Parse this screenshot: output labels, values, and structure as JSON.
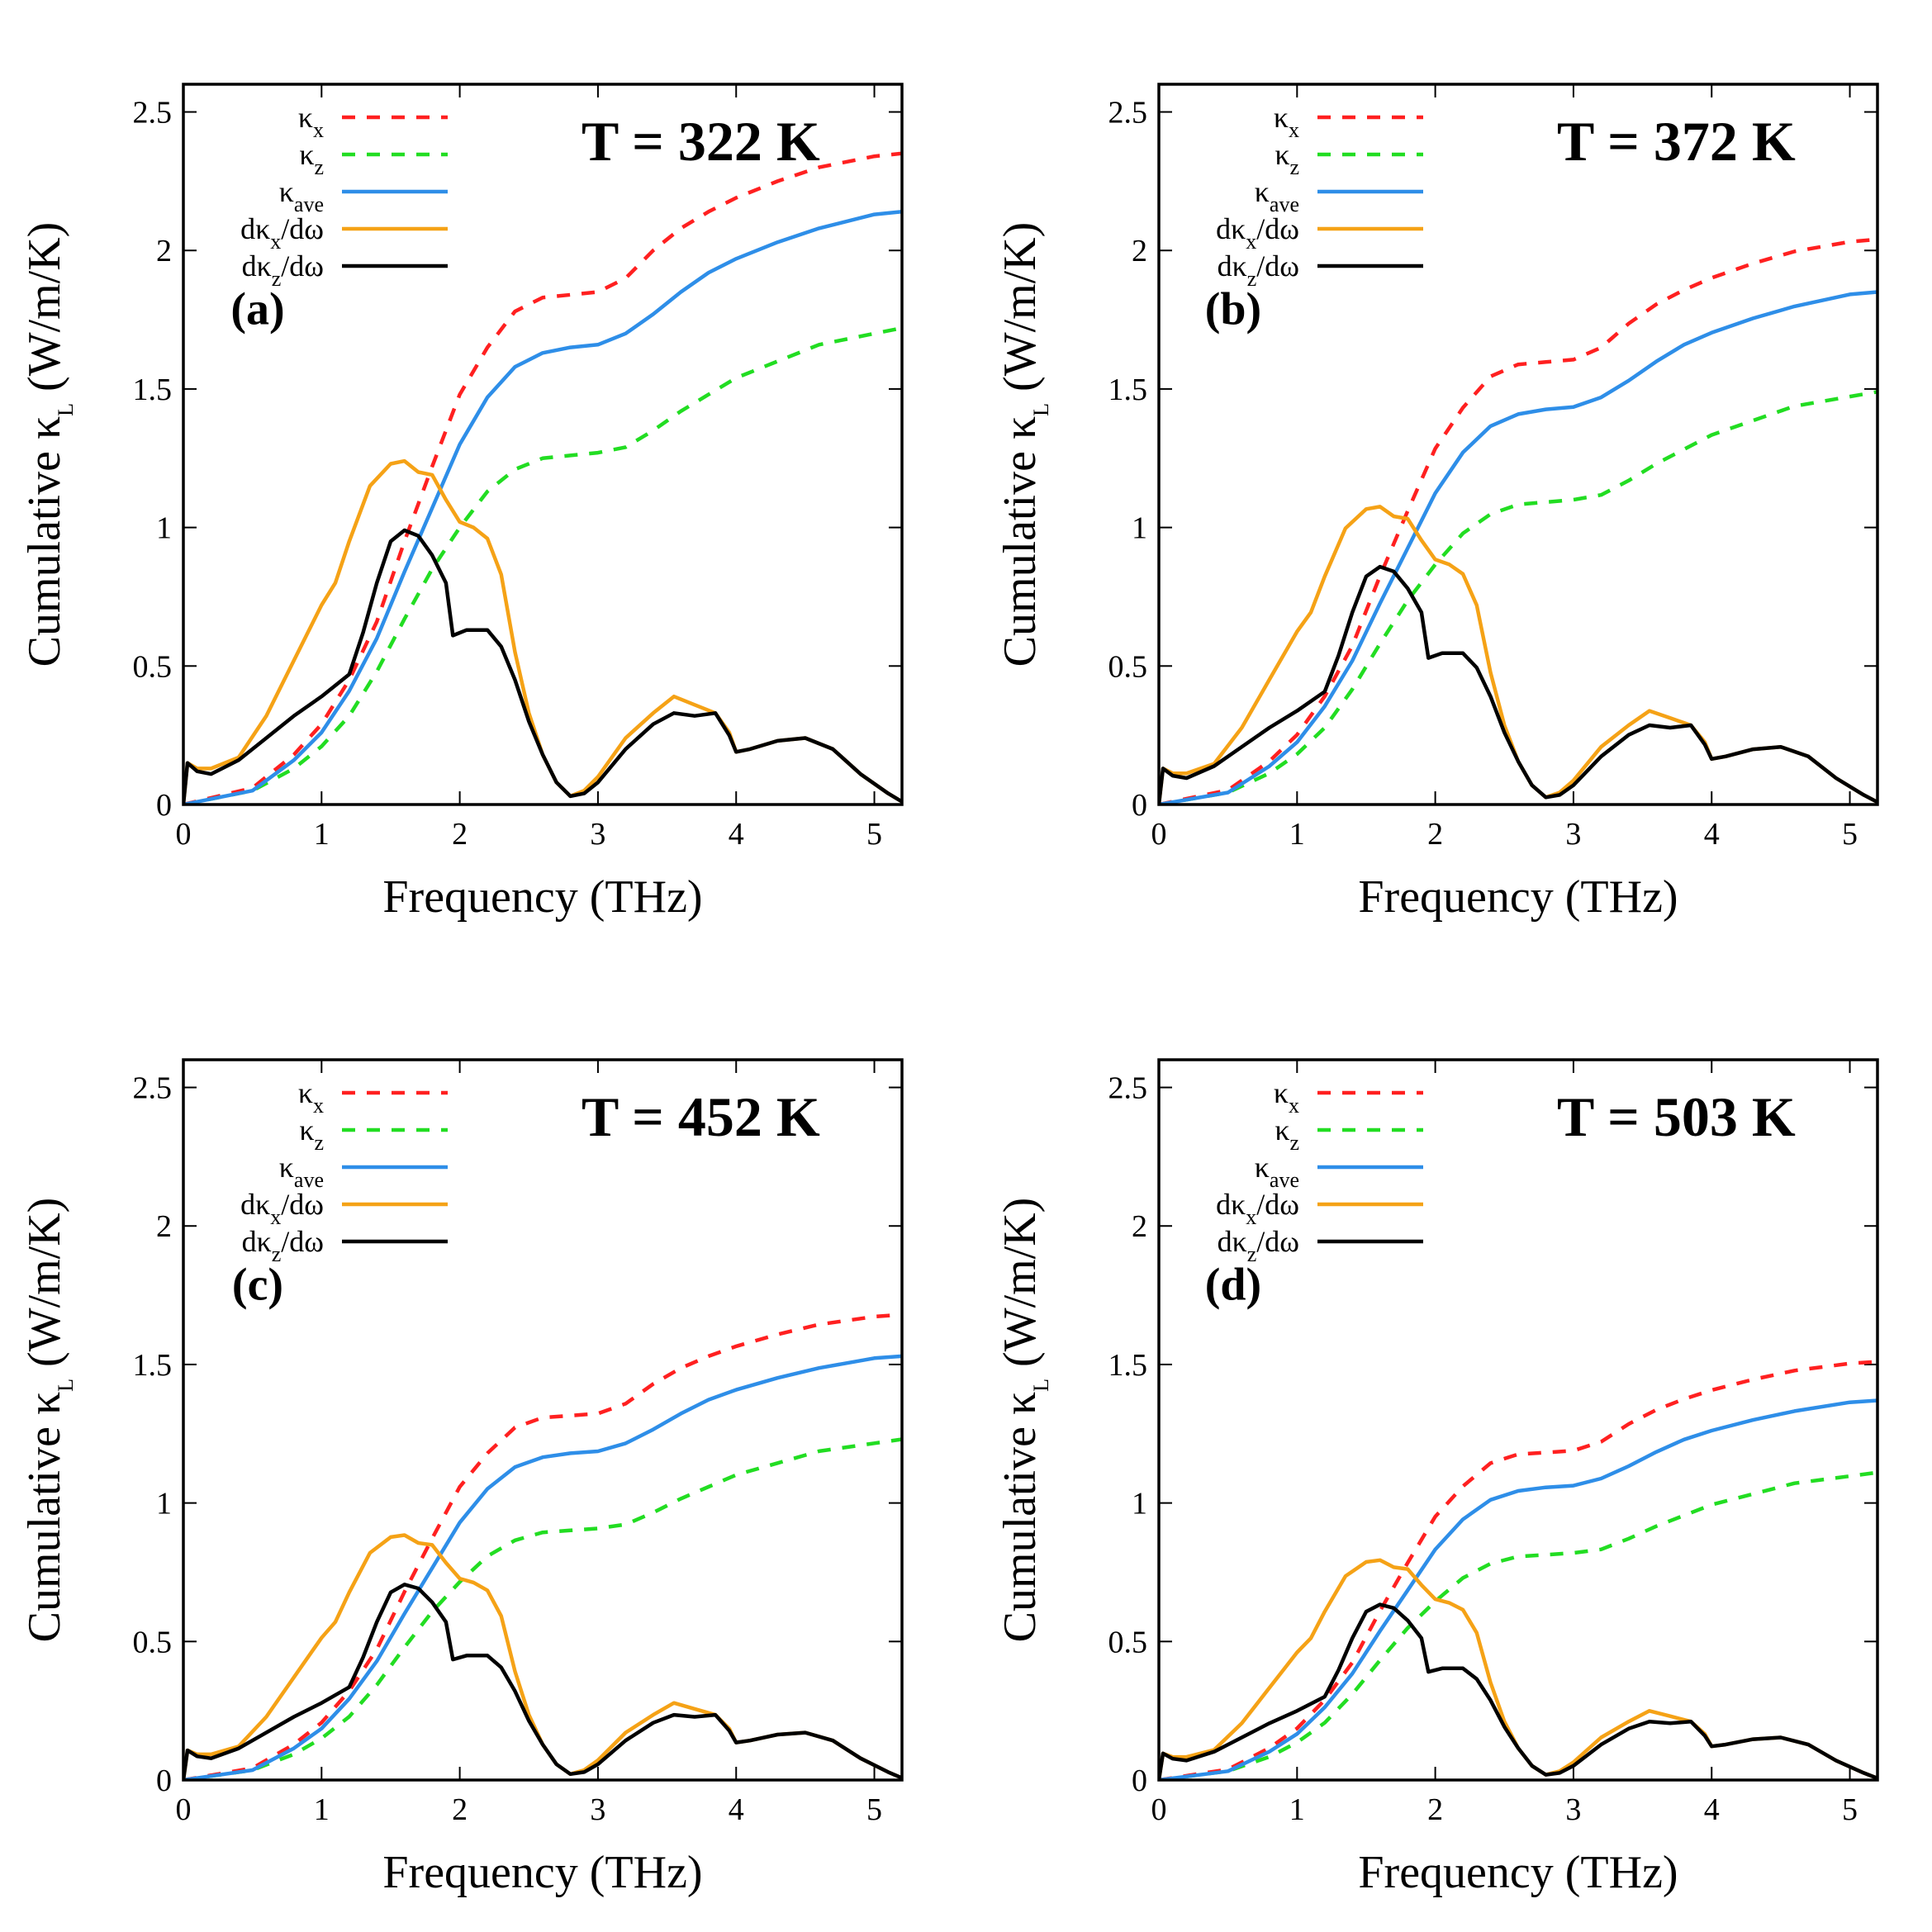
{
  "legend": [
    {
      "key": "kx",
      "label": "κ",
      "sub": "x",
      "suffix": "",
      "color": "#ff2020",
      "dash": true
    },
    {
      "key": "kz",
      "label": "κ",
      "sub": "z",
      "suffix": "",
      "color": "#22dd22",
      "dash": true
    },
    {
      "key": "kave",
      "label": "κ",
      "sub": "ave",
      "suffix": "",
      "color": "#2e8ee8",
      "dash": false
    },
    {
      "key": "dkx",
      "label": "dκ",
      "sub": "x",
      "suffix": "/dω",
      "color": "#f5a216",
      "dash": false
    },
    {
      "key": "dkz",
      "label": "dκ",
      "sub": "z",
      "suffix": "/dω",
      "color": "#000000",
      "dash": false
    }
  ],
  "chart_data": [
    {
      "type": "line",
      "panel_label": "(a)",
      "title": "T = 322 K",
      "xlabel": "Frequency (THz)",
      "ylabel_main": "Cumulative κ",
      "ylabel_sub": "L",
      "ylabel_unit": " (W/m/K)",
      "xlim": [
        0,
        5.2
      ],
      "ylim": [
        0,
        2.6
      ],
      "xticks": [
        "0",
        "1",
        "2",
        "3",
        "4",
        "5"
      ],
      "yticks": [
        "0",
        "0.5",
        "1",
        "1.5",
        "2",
        "2.5"
      ],
      "scale": 1.0,
      "kx_end": 2.35,
      "kz_end": 1.72,
      "kave_end": 2.14
    },
    {
      "type": "line",
      "panel_label": "(b)",
      "title": "T = 372 K",
      "xlabel": "Frequency (THz)",
      "ylabel_main": "Cumulative κ",
      "ylabel_sub": "L",
      "ylabel_unit": " (W/m/K)",
      "xlim": [
        0,
        5.2
      ],
      "ylim": [
        0,
        2.6
      ],
      "xticks": [
        "0",
        "1",
        "2",
        "3",
        "4",
        "5"
      ],
      "yticks": [
        "0",
        "0.5",
        "1",
        "1.5",
        "2",
        "2.5"
      ],
      "scale": 0.867,
      "kx_end": 2.04,
      "kz_end": 1.49,
      "kave_end": 1.85
    },
    {
      "type": "line",
      "panel_label": "(c)",
      "title": "T = 452 K",
      "xlabel": "Frequency (THz)",
      "ylabel_main": "Cumulative κ",
      "ylabel_sub": "L",
      "ylabel_unit": " (W/m/K)",
      "xlim": [
        0,
        5.2
      ],
      "ylim": [
        0,
        2.6
      ],
      "xticks": [
        "0",
        "1",
        "2",
        "3",
        "4",
        "5"
      ],
      "yticks": [
        "0",
        "0.5",
        "1",
        "1.5",
        "2",
        "2.5"
      ],
      "scale": 0.713,
      "kx_end": 1.68,
      "kz_end": 1.23,
      "kave_end": 1.53
    },
    {
      "type": "line",
      "panel_label": "(d)",
      "title": "T = 503 K",
      "xlabel": "Frequency (THz)",
      "ylabel_main": "Cumulative κ",
      "ylabel_sub": "L",
      "ylabel_unit": " (W/m/K)",
      "xlim": [
        0,
        5.2
      ],
      "ylim": [
        0,
        2.6
      ],
      "xticks": [
        "0",
        "1",
        "2",
        "3",
        "4",
        "5"
      ],
      "yticks": [
        "0",
        "0.5",
        "1",
        "1.5",
        "2",
        "2.5"
      ],
      "scale": 0.64,
      "kx_end": 1.51,
      "kz_end": 1.11,
      "kave_end": 1.37
    }
  ],
  "base_curves_T322": {
    "kx": [
      [
        0,
        0
      ],
      [
        0.5,
        0.06
      ],
      [
        0.8,
        0.18
      ],
      [
        1.0,
        0.29
      ],
      [
        1.2,
        0.45
      ],
      [
        1.4,
        0.66
      ],
      [
        1.6,
        0.95
      ],
      [
        1.8,
        1.22
      ],
      [
        2.0,
        1.48
      ],
      [
        2.2,
        1.65
      ],
      [
        2.4,
        1.78
      ],
      [
        2.6,
        1.83
      ],
      [
        2.8,
        1.84
      ],
      [
        3.0,
        1.85
      ],
      [
        3.2,
        1.9
      ],
      [
        3.4,
        2.0
      ],
      [
        3.6,
        2.08
      ],
      [
        3.8,
        2.14
      ],
      [
        4.0,
        2.19
      ],
      [
        4.3,
        2.25
      ],
      [
        4.6,
        2.3
      ],
      [
        5.0,
        2.34
      ],
      [
        5.2,
        2.35
      ]
    ],
    "kz": [
      [
        0,
        0
      ],
      [
        0.5,
        0.05
      ],
      [
        0.8,
        0.13
      ],
      [
        1.0,
        0.21
      ],
      [
        1.2,
        0.32
      ],
      [
        1.4,
        0.48
      ],
      [
        1.6,
        0.67
      ],
      [
        1.8,
        0.85
      ],
      [
        2.0,
        1.0
      ],
      [
        2.2,
        1.13
      ],
      [
        2.4,
        1.21
      ],
      [
        2.6,
        1.25
      ],
      [
        2.8,
        1.26
      ],
      [
        3.0,
        1.27
      ],
      [
        3.2,
        1.29
      ],
      [
        3.4,
        1.35
      ],
      [
        3.6,
        1.42
      ],
      [
        3.8,
        1.48
      ],
      [
        4.0,
        1.54
      ],
      [
        4.3,
        1.6
      ],
      [
        4.6,
        1.66
      ],
      [
        5.0,
        1.7
      ],
      [
        5.2,
        1.72
      ]
    ],
    "kave": [
      [
        0,
        0
      ],
      [
        0.5,
        0.05
      ],
      [
        0.8,
        0.16
      ],
      [
        1.0,
        0.26
      ],
      [
        1.2,
        0.41
      ],
      [
        1.4,
        0.6
      ],
      [
        1.6,
        0.84
      ],
      [
        1.8,
        1.07
      ],
      [
        2.0,
        1.3
      ],
      [
        2.2,
        1.47
      ],
      [
        2.4,
        1.58
      ],
      [
        2.6,
        1.63
      ],
      [
        2.8,
        1.65
      ],
      [
        3.0,
        1.66
      ],
      [
        3.2,
        1.7
      ],
      [
        3.4,
        1.77
      ],
      [
        3.6,
        1.85
      ],
      [
        3.8,
        1.92
      ],
      [
        4.0,
        1.97
      ],
      [
        4.3,
        2.03
      ],
      [
        4.6,
        2.08
      ],
      [
        5.0,
        2.13
      ],
      [
        5.2,
        2.14
      ]
    ],
    "dkx": [
      [
        0,
        0
      ],
      [
        0.03,
        0.15
      ],
      [
        0.1,
        0.13
      ],
      [
        0.2,
        0.13
      ],
      [
        0.4,
        0.17
      ],
      [
        0.6,
        0.32
      ],
      [
        0.8,
        0.52
      ],
      [
        1.0,
        0.72
      ],
      [
        1.1,
        0.8
      ],
      [
        1.2,
        0.95
      ],
      [
        1.35,
        1.15
      ],
      [
        1.5,
        1.23
      ],
      [
        1.6,
        1.24
      ],
      [
        1.7,
        1.2
      ],
      [
        1.8,
        1.19
      ],
      [
        1.9,
        1.1
      ],
      [
        2.0,
        1.02
      ],
      [
        2.1,
        1.0
      ],
      [
        2.2,
        0.96
      ],
      [
        2.3,
        0.83
      ],
      [
        2.4,
        0.55
      ],
      [
        2.5,
        0.33
      ],
      [
        2.6,
        0.18
      ],
      [
        2.7,
        0.08
      ],
      [
        2.8,
        0.03
      ],
      [
        2.9,
        0.05
      ],
      [
        3.0,
        0.1
      ],
      [
        3.2,
        0.24
      ],
      [
        3.4,
        0.33
      ],
      [
        3.55,
        0.39
      ],
      [
        3.7,
        0.36
      ],
      [
        3.85,
        0.33
      ],
      [
        3.95,
        0.26
      ],
      [
        4.0,
        0.19
      ],
      [
        4.1,
        0.2
      ],
      [
        4.3,
        0.23
      ],
      [
        4.5,
        0.24
      ],
      [
        4.7,
        0.2
      ],
      [
        4.9,
        0.11
      ],
      [
        5.1,
        0.04
      ],
      [
        5.2,
        0.01
      ]
    ],
    "dkz": [
      [
        0,
        0
      ],
      [
        0.03,
        0.15
      ],
      [
        0.1,
        0.12
      ],
      [
        0.2,
        0.11
      ],
      [
        0.4,
        0.16
      ],
      [
        0.6,
        0.24
      ],
      [
        0.8,
        0.32
      ],
      [
        1.0,
        0.39
      ],
      [
        1.2,
        0.47
      ],
      [
        1.3,
        0.62
      ],
      [
        1.4,
        0.8
      ],
      [
        1.5,
        0.95
      ],
      [
        1.6,
        0.99
      ],
      [
        1.7,
        0.97
      ],
      [
        1.8,
        0.9
      ],
      [
        1.9,
        0.8
      ],
      [
        1.95,
        0.61
      ],
      [
        2.05,
        0.63
      ],
      [
        2.2,
        0.63
      ],
      [
        2.3,
        0.57
      ],
      [
        2.4,
        0.45
      ],
      [
        2.5,
        0.3
      ],
      [
        2.6,
        0.18
      ],
      [
        2.7,
        0.08
      ],
      [
        2.8,
        0.03
      ],
      [
        2.9,
        0.04
      ],
      [
        3.0,
        0.08
      ],
      [
        3.2,
        0.2
      ],
      [
        3.4,
        0.29
      ],
      [
        3.55,
        0.33
      ],
      [
        3.7,
        0.32
      ],
      [
        3.85,
        0.33
      ],
      [
        3.95,
        0.25
      ],
      [
        4.0,
        0.19
      ],
      [
        4.1,
        0.2
      ],
      [
        4.3,
        0.23
      ],
      [
        4.5,
        0.24
      ],
      [
        4.7,
        0.2
      ],
      [
        4.9,
        0.11
      ],
      [
        5.1,
        0.04
      ],
      [
        5.2,
        0.01
      ]
    ]
  }
}
